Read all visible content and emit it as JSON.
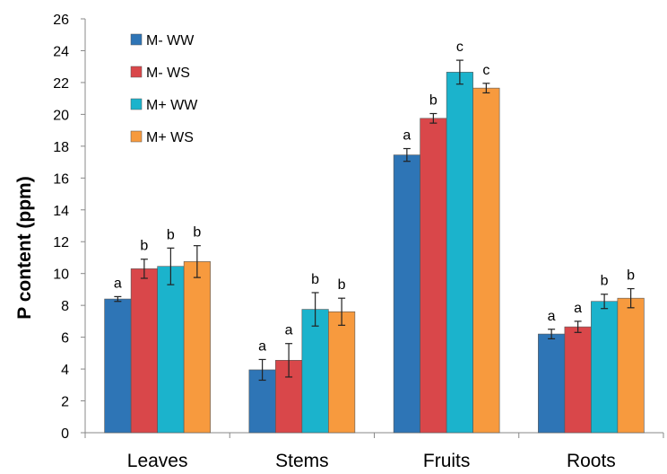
{
  "chart_data": {
    "type": "bar",
    "ylabel": "P content (ppm)",
    "ylim": [
      0,
      26
    ],
    "ytick_step": 2,
    "categories": [
      "Leaves",
      "Stems",
      "Fruits",
      "Roots"
    ],
    "series": [
      {
        "name": "M- WW",
        "color": "#2E75B6",
        "values": [
          8.4,
          3.95,
          17.45,
          6.2
        ],
        "errors": [
          0.15,
          0.65,
          0.4,
          0.3
        ],
        "sig": [
          "a",
          "a",
          "a",
          "a"
        ]
      },
      {
        "name": "M- WS",
        "color": "#D9474A",
        "values": [
          10.3,
          4.55,
          19.75,
          6.65
        ],
        "errors": [
          0.6,
          1.05,
          0.3,
          0.35
        ],
        "sig": [
          "b",
          "a",
          "b",
          "a"
        ]
      },
      {
        "name": "M+ WW",
        "color": "#1BB3CC",
        "values": [
          10.45,
          7.75,
          22.65,
          8.25
        ],
        "errors": [
          1.15,
          1.05,
          0.75,
          0.45
        ],
        "sig": [
          "b",
          "b",
          "c",
          "b"
        ]
      },
      {
        "name": "M+ WS",
        "color": "#F79A3E",
        "values": [
          10.75,
          7.6,
          21.65,
          8.45
        ],
        "errors": [
          1.0,
          0.85,
          0.3,
          0.6
        ],
        "sig": [
          "b",
          "b",
          "c",
          "b"
        ]
      }
    ],
    "legend_position": "top-left",
    "grid": false
  }
}
